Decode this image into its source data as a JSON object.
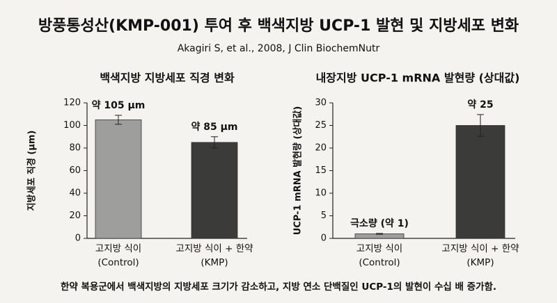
{
  "title": "방풍통성산(KMP-001) 투여 후 백색지방 UCP-1 발현 및 지방세포 변화",
  "subtitle": "Akagiri S, et al., 2008, J Clin BiochemNutr",
  "footer": "한약 복용군에서 백색지방의 지방세포 크기가 감소하고, 지방 연소 단백질인 UCP-1의 발현이 수십 배 증가함.",
  "chart_data": [
    {
      "type": "bar",
      "title": "백색지방 지방세포 직경 변화",
      "y_label": "지방세포 직경 (μm)",
      "categories": [
        [
          "고지방 식이",
          "(Control)"
        ],
        [
          "고지방 식이 + 한약",
          "(KMP)"
        ]
      ],
      "values": [
        105,
        85
      ],
      "errors": [
        4,
        5
      ],
      "value_labels": [
        "약 105 μm",
        "약 85 μm"
      ],
      "colors": [
        "#9e9e9c",
        "#3b3b39"
      ],
      "ylim": [
        0,
        120
      ],
      "yticks": [
        0,
        20,
        40,
        60,
        80,
        100,
        120
      ]
    },
    {
      "type": "bar",
      "title": "내장지방 UCP-1 mRNA 발현량 (상대값)",
      "y_label": "UCP-1 mRNA 발현량 (상대값)",
      "categories": [
        [
          "고지방 식이",
          "(Control)"
        ],
        [
          "고지방 식이 + 한약",
          "(KMP)"
        ]
      ],
      "values": [
        1,
        25
      ],
      "errors": [
        0.1,
        2.4
      ],
      "value_labels": [
        "극소량 (약 1)",
        "약 25"
      ],
      "colors": [
        "#9e9e9c",
        "#3b3b39"
      ],
      "ylim": [
        0,
        30
      ],
      "yticks": [
        0,
        5,
        10,
        15,
        20,
        25,
        30
      ]
    }
  ]
}
